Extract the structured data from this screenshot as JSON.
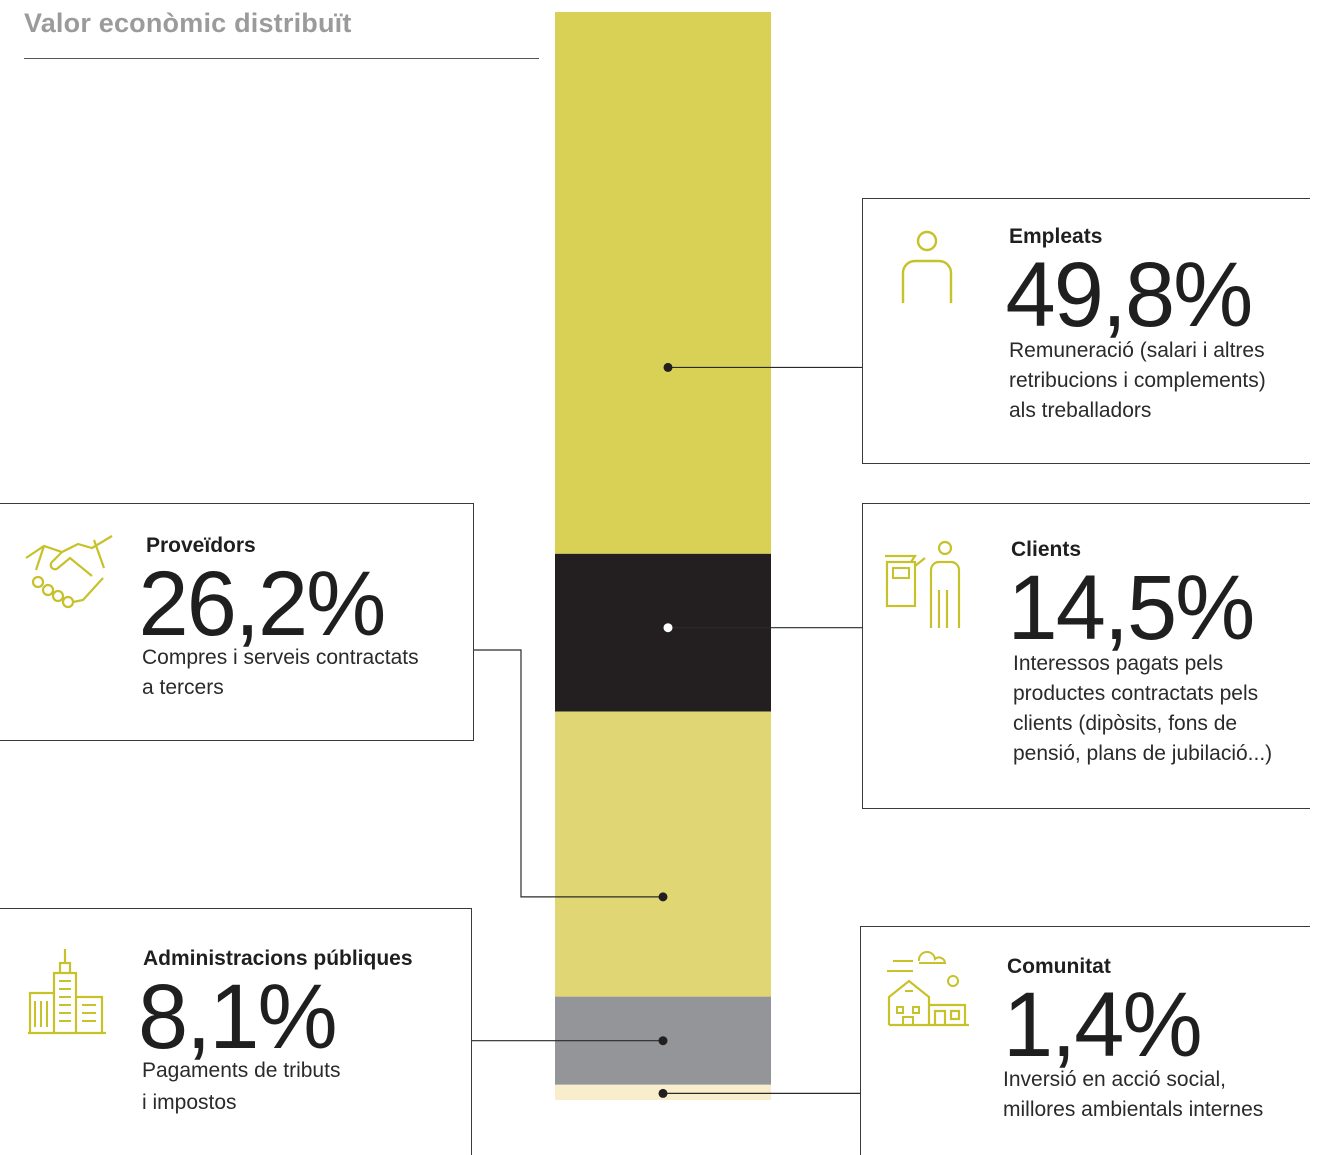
{
  "header": {
    "title": "Valor econòmic distribuït"
  },
  "colors": {
    "olive": "#d8d156",
    "black": "#231f20",
    "light_olive": "#e0d674",
    "gray": "#939598",
    "cream": "#f8eecb",
    "icon": "#c7c12a"
  },
  "chart_data": {
    "type": "bar",
    "orientation": "vertical-stacked",
    "title": "Valor econòmic distribuït",
    "unit": "%",
    "series": [
      {
        "name": "Empleats",
        "value": 49.8,
        "color": "#d8d156"
      },
      {
        "name": "Clients",
        "value": 14.5,
        "color": "#231f20"
      },
      {
        "name": "Proveïdors",
        "value": 26.2,
        "color": "#e0d674"
      },
      {
        "name": "Administracions públiques",
        "value": 8.1,
        "color": "#939598"
      },
      {
        "name": "Comunitat",
        "value": 1.4,
        "color": "#f8eecb"
      }
    ]
  },
  "cards": {
    "empleats": {
      "label": "Empleats",
      "value": "49,8%",
      "desc1": "Remuneració (salari i altres",
      "desc2": "retribucions i complements)",
      "desc3": "als treballadors",
      "icon": "person-icon"
    },
    "clients": {
      "label": "Clients",
      "value": "14,5%",
      "desc1": "Interessos pagats pels",
      "desc2": "productes contractats pels",
      "desc3": "clients (dipòsits, fons de",
      "desc4": "pensió, plans de jubilació...)",
      "icon": "atm-client-icon"
    },
    "proveidors": {
      "label": "Proveïdors",
      "value": "26,2%",
      "desc1": "Compres i serveis contractats",
      "desc2": "a tercers",
      "icon": "handshake-icon"
    },
    "administracions": {
      "label": "Administracions públiques",
      "value": "8,1%",
      "desc1": "Pagaments de tributs",
      "desc2": "i impostos",
      "icon": "city-buildings-icon"
    },
    "comunitat": {
      "label": "Comunitat",
      "value": "1,4%",
      "desc1": "Inversió en acció social,",
      "desc2": "millores ambientals internes",
      "icon": "community-house-icon"
    }
  }
}
